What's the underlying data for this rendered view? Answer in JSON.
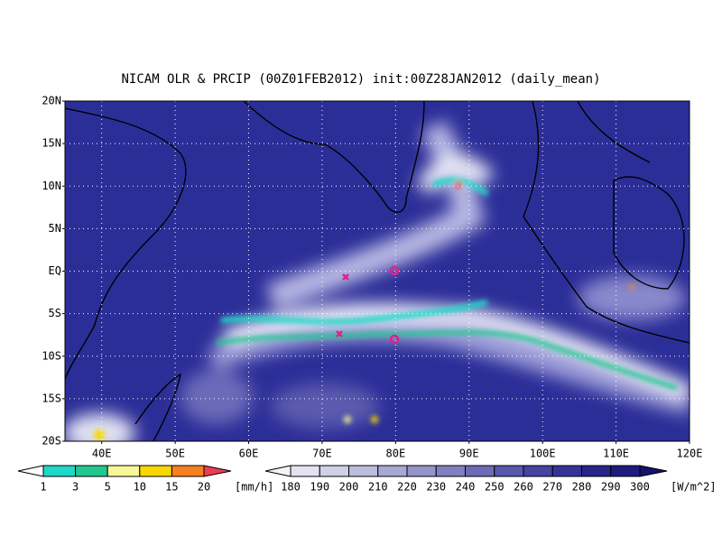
{
  "title": "NICAM OLR & PRCIP (00Z01FEB2012) init:00Z28JAN2012 (daily_mean)",
  "lat_labels": [
    "20N",
    "15N",
    "10N",
    "5N",
    "EQ",
    "5S",
    "10S",
    "15S",
    "20S"
  ],
  "lon_labels": [
    "40E",
    "50E",
    "60E",
    "70E",
    "80E",
    "90E",
    "100E",
    "110E",
    "120E"
  ],
  "precip_colorbar": {
    "labels": [
      1,
      3,
      5,
      10,
      15,
      20
    ],
    "unit": "[mm/h]",
    "colors": [
      "#ffffff",
      "#20d8c8",
      "#20c890",
      "#f8f898",
      "#f8d800",
      "#f88020",
      "#f03c50"
    ]
  },
  "olr_colorbar": {
    "labels": [
      180,
      190,
      200,
      210,
      220,
      230,
      240,
      250,
      260,
      270,
      280,
      290,
      300
    ],
    "unit": "[W/m^2]",
    "colors": [
      "#f4f4fa",
      "#e2e2f0",
      "#d0d0e8",
      "#bcbcde",
      "#a8a8d4",
      "#9494ca",
      "#8080c0",
      "#6c6cb6",
      "#5858ac",
      "#4444a2",
      "#343498",
      "#26268c",
      "#1c1c80",
      "#121270"
    ]
  }
}
